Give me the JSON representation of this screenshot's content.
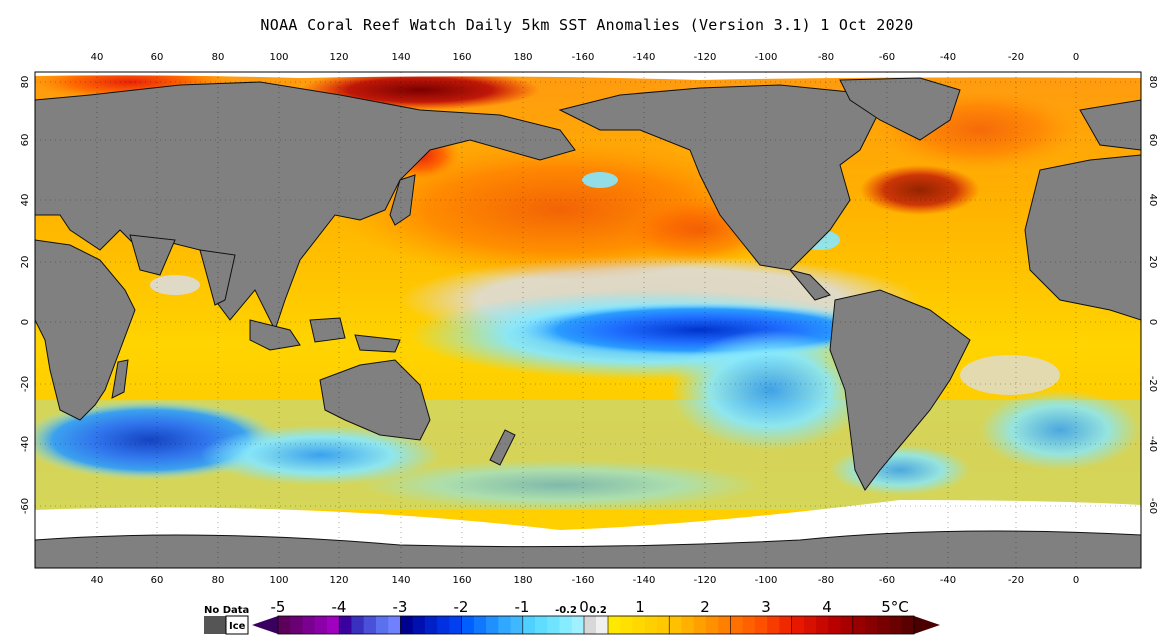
{
  "title": "NOAA Coral Reef Watch Daily 5km SST Anomalies (Version 3.1)   1 Oct 2020",
  "map": {
    "lon_ticks": [
      "40",
      "60",
      "80",
      "100",
      "120",
      "140",
      "160",
      "180",
      "-160",
      "-140",
      "-120",
      "-100",
      "-80",
      "-60",
      "-40",
      "-20",
      "0"
    ],
    "lat_ticks": [
      "80",
      "60",
      "40",
      "20",
      "0",
      "-20",
      "-40",
      "-60"
    ]
  },
  "legend": {
    "no_data_label": "No Data",
    "ice_label": "Ice",
    "no_data_color": "#555555",
    "ice_color": "#ffffff",
    "labels": [
      "-5",
      "-4",
      "-3",
      "-2",
      "-1",
      "-0.2",
      "0",
      "0.2",
      "1",
      "2",
      "3",
      "4",
      "5°C"
    ],
    "colors": {
      "very_cold": "#3a0060",
      "cold": "#0033cc",
      "cool": "#2a9cff",
      "light_cool": "#86e8ff",
      "neutral": "#d8d8d8",
      "warm": "#ffd400",
      "warmer": "#ff8c00",
      "hot": "#e8220a",
      "very_hot": "#7a0000"
    }
  },
  "land_color": "#808080"
}
